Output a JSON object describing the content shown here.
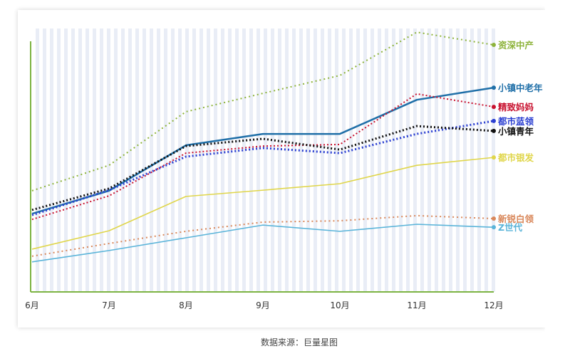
{
  "chart_data": {
    "type": "line",
    "title": "",
    "xlabel": "",
    "ylabel": "",
    "categories": [
      "6月",
      "7月",
      "8月",
      "9月",
      "10月",
      "11月",
      "12月"
    ],
    "ylim": [
      0,
      100
    ],
    "y_axis_labels_shown": false,
    "grid": false,
    "legend": "right end-of-line labels",
    "series": [
      {
        "name": "资深中产",
        "color": "#8db33a",
        "style": "dotted",
        "values": [
          37.4,
          46.8,
          66.6,
          73.4,
          80.0,
          96.0,
          91.3
        ]
      },
      {
        "name": "小镇中老年",
        "color": "#1f6fa8",
        "style": "solid",
        "values": [
          28.9,
          37.4,
          54.2,
          58.4,
          58.4,
          71.0,
          75.5
        ]
      },
      {
        "name": "精致妈妈",
        "color": "#c8102e",
        "style": "dotted",
        "values": [
          26.8,
          35.5,
          51.3,
          53.9,
          54.5,
          73.2,
          68.4
        ]
      },
      {
        "name": "都市蓝领",
        "color": "#2b3fd1",
        "style": "dotted",
        "values": [
          28.4,
          37.6,
          50.0,
          53.2,
          51.3,
          58.4,
          63.2
        ]
      },
      {
        "name": "小镇青年",
        "color": "#111111",
        "style": "dotted",
        "values": [
          30.3,
          38.2,
          53.9,
          56.6,
          52.6,
          61.3,
          59.5
        ]
      },
      {
        "name": "都市银发",
        "color": "#e0d64a",
        "style": "solid",
        "values": [
          15.8,
          22.6,
          35.3,
          37.6,
          40.0,
          46.8,
          49.7
        ]
      },
      {
        "name": "新锐白领",
        "color": "#d9875a",
        "style": "dotted",
        "values": [
          13.2,
          17.9,
          22.4,
          25.8,
          26.3,
          28.2,
          27.1
        ]
      },
      {
        "name": "Z世代",
        "color": "#5ab4d9",
        "style": "solid",
        "values": [
          11.1,
          15.3,
          20.0,
          24.7,
          22.4,
          25.0,
          23.9
        ]
      }
    ]
  },
  "source": "数据来源：巨量星图",
  "colors": {
    "axis": "#7cb342",
    "stripe": "#e9edf6"
  }
}
